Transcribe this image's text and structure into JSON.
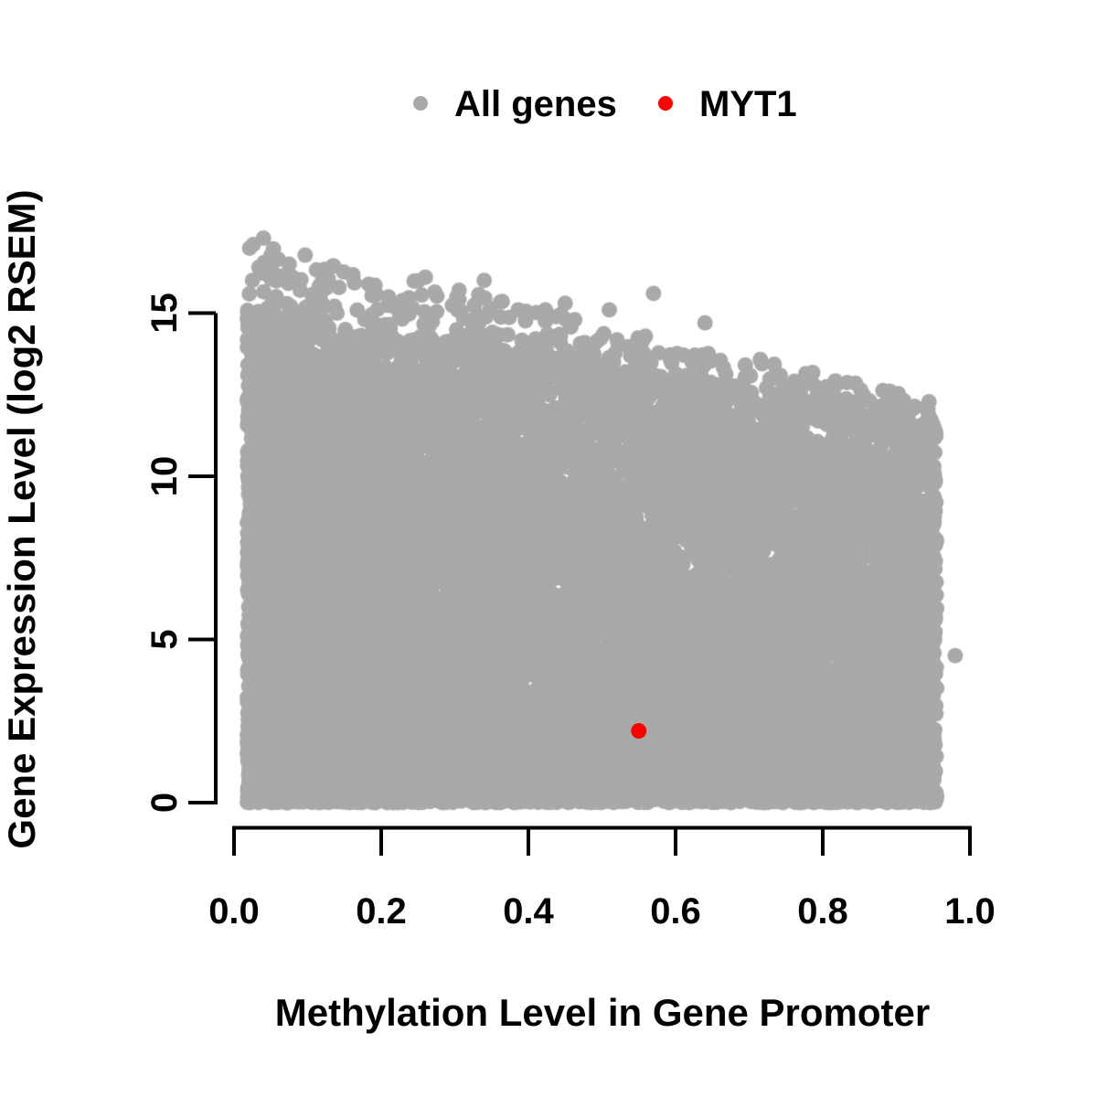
{
  "figure": {
    "background": "#FFFFFF",
    "text_color": "#000000",
    "axis_color": "#000000"
  },
  "chart_data": {
    "type": "scatter",
    "title": "",
    "xlabel": "Methylation Level in Gene Promoter",
    "ylabel": "Gene Expression Level (log2 RSEM)",
    "xlim": [
      0,
      1.0
    ],
    "ylim": [
      0,
      17.5
    ],
    "grid": false,
    "x_ticks": [
      "0.0",
      "0.2",
      "0.4",
      "0.6",
      "0.8",
      "1.0"
    ],
    "y_ticks": [
      "0",
      "5",
      "10",
      "15"
    ],
    "legend": {
      "position": "top-center",
      "items": [
        {
          "label": "All genes",
          "color": "#A9A9A9"
        },
        {
          "label": "MYT1",
          "color": "#FF0000"
        }
      ]
    },
    "series": [
      {
        "name": "All genes",
        "color": "#A9A9A9",
        "marker": "filled-circle",
        "marker_radius_px": 8.5,
        "summary": "Dense cloud of ~15,000 genes spanning methylation 0.02-0.96 and expression 0-15; upper edge of the dense mass falls from ~15 log2 RSEM at low methylation to ~11.5 at high methylation, with sparse points up to ~17.4",
        "generator": {
          "seed": 20,
          "n_main": 14500,
          "n_fringe": 700,
          "x_min": 0.018,
          "x_max": 0.955,
          "x_bias": 1.2,
          "dense_top_intercept": 14.6,
          "dense_top_slope": -3.6,
          "outer_top_intercept": 17.3,
          "outer_top_slope": -5.2,
          "y_bias": 1.35,
          "fringe_bias": 2.6
        },
        "outlier_points": [
          [
            0.04,
            17.3
          ],
          [
            0.075,
            16.5
          ],
          [
            0.025,
            16.0
          ],
          [
            0.09,
            15.7
          ],
          [
            0.21,
            15.5
          ],
          [
            0.26,
            16.1
          ],
          [
            0.34,
            16.0
          ],
          [
            0.45,
            15.3
          ],
          [
            0.51,
            15.1
          ],
          [
            0.57,
            15.6
          ],
          [
            0.64,
            14.7
          ],
          [
            0.98,
            4.5
          ]
        ]
      },
      {
        "name": "MYT1",
        "color": "#FF0000",
        "marker": "filled-circle",
        "marker_radius_px": 8.5,
        "points": [
          [
            0.55,
            2.2
          ]
        ]
      }
    ]
  }
}
